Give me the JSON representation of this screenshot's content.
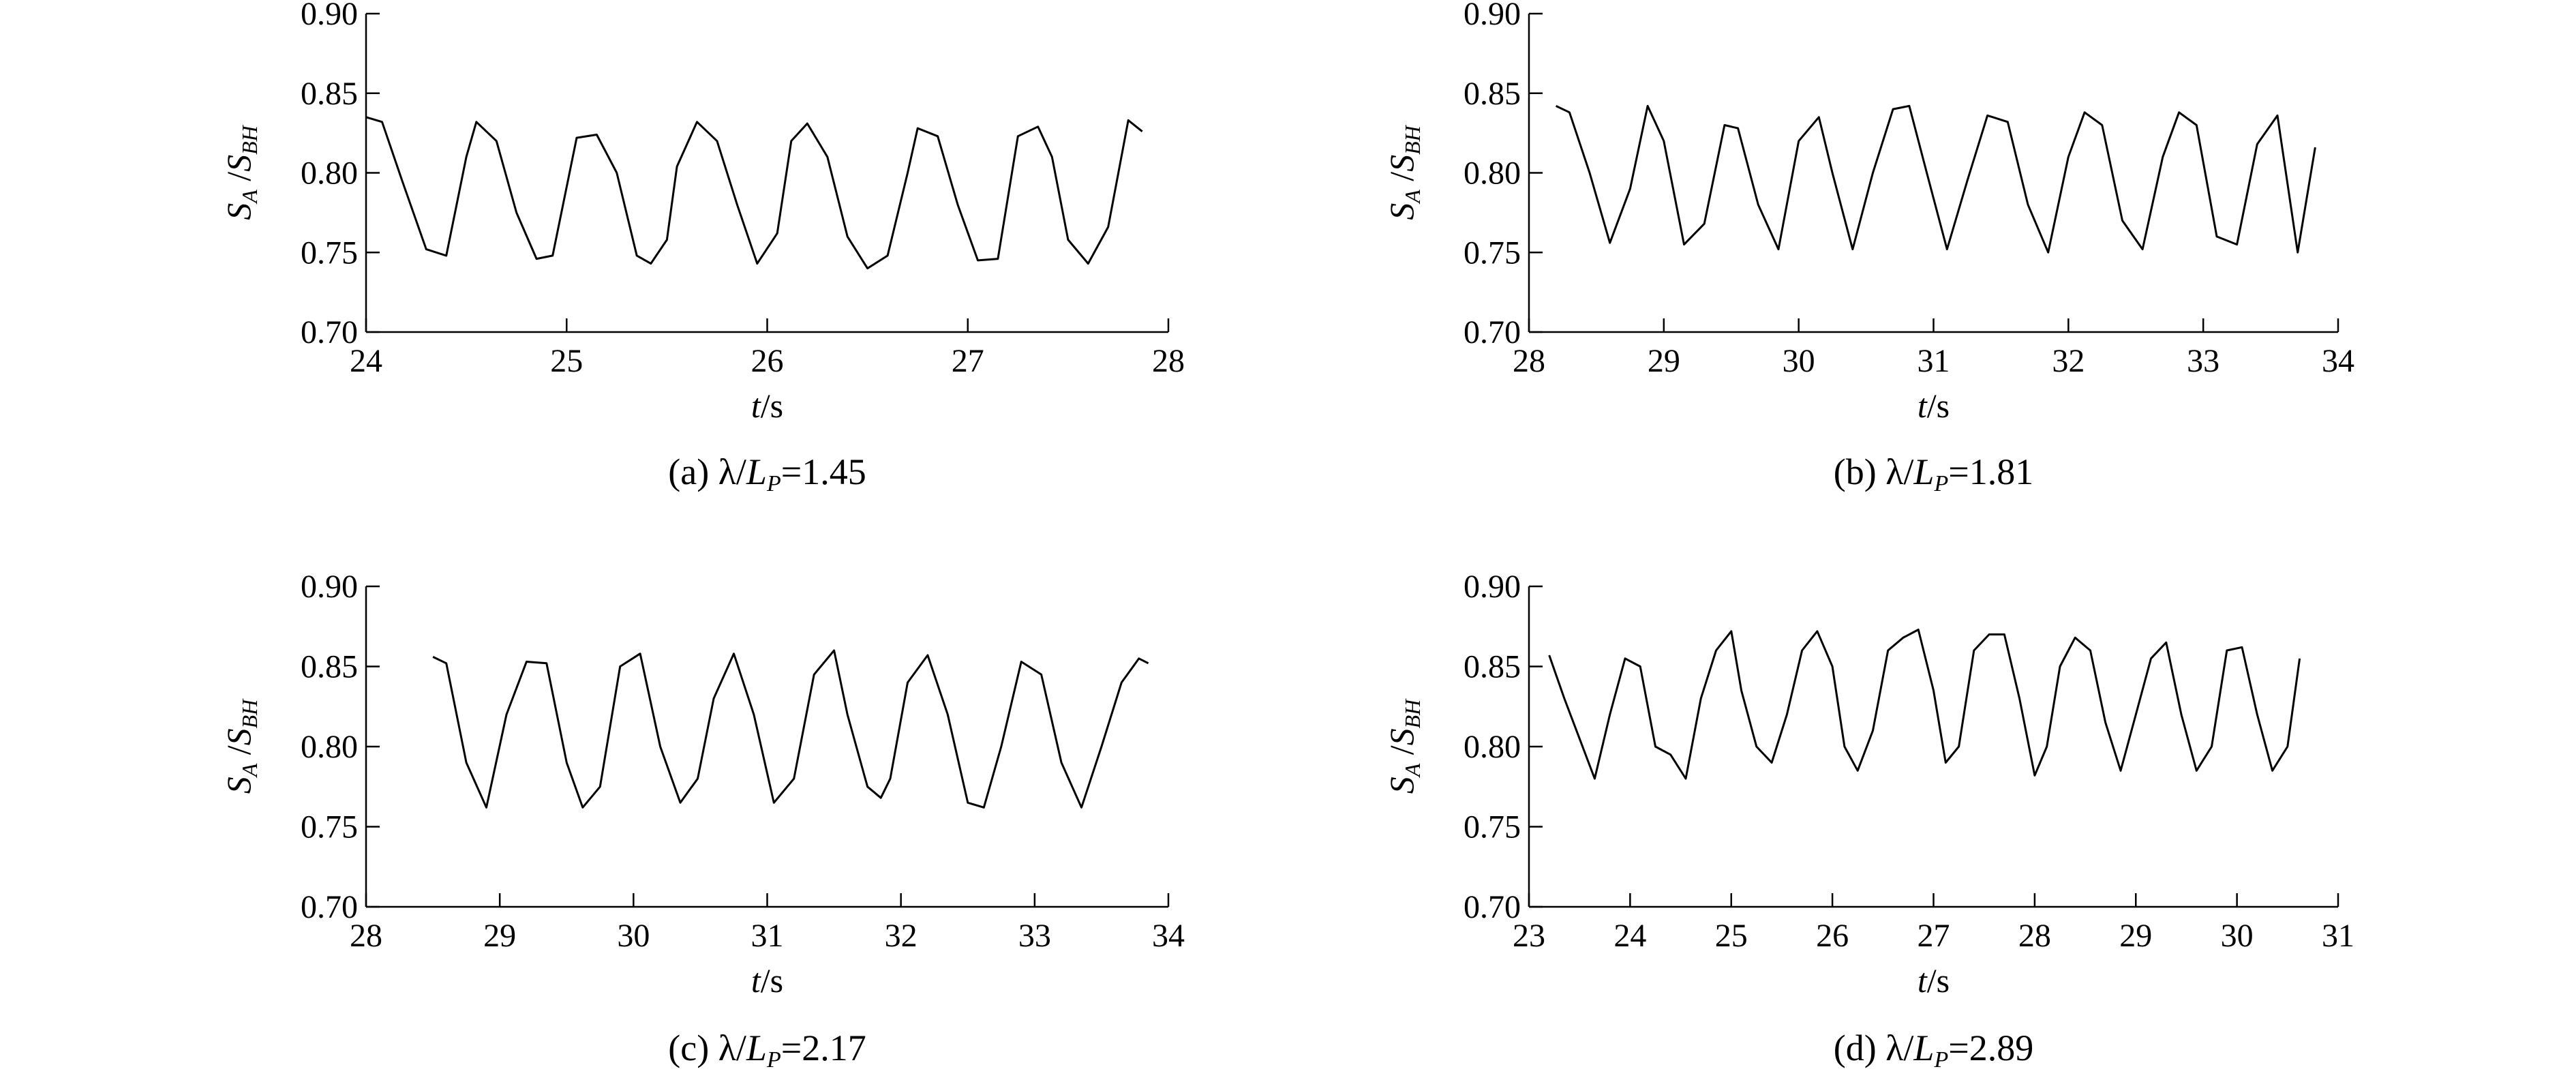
{
  "chart_data": [
    {
      "id": "a",
      "type": "line",
      "caption_prefix": "(a) λ/",
      "caption_var": "L",
      "caption_sub": "P",
      "caption_value": "=1.45",
      "ylabel": {
        "s1": "S",
        "sub1": "A",
        "sep": " /",
        "s2": "S",
        "sub2": "BH"
      },
      "xlabel": {
        "var": "t",
        "unit": "/s"
      },
      "xlim": [
        24,
        28
      ],
      "ylim": [
        0.7,
        0.9
      ],
      "xticks": [
        24,
        25,
        26,
        27,
        28
      ],
      "yticks": [
        0.7,
        0.75,
        0.8,
        0.85,
        0.9
      ],
      "xtick_labels": [
        "24",
        "25",
        "26",
        "27",
        "28"
      ],
      "ytick_labels": [
        "0.70",
        "0.75",
        "0.80",
        "0.85",
        "0.90"
      ],
      "series": [
        {
          "x": [
            24.0,
            24.08,
            24.18,
            24.3,
            24.4,
            24.5,
            24.55,
            24.65,
            24.75,
            24.85,
            24.93,
            25.05,
            25.15,
            25.25,
            25.35,
            25.42,
            25.5,
            25.55,
            25.65,
            25.75,
            25.85,
            25.95,
            26.05,
            26.12,
            26.2,
            26.3,
            26.4,
            26.5,
            26.6,
            26.7,
            26.75,
            26.85,
            26.95,
            27.05,
            27.15,
            27.25,
            27.35,
            27.42,
            27.5,
            27.6,
            27.7,
            27.8,
            27.87
          ],
          "y": [
            0.835,
            0.832,
            0.795,
            0.752,
            0.748,
            0.81,
            0.832,
            0.82,
            0.775,
            0.746,
            0.748,
            0.822,
            0.824,
            0.8,
            0.748,
            0.743,
            0.758,
            0.804,
            0.832,
            0.82,
            0.78,
            0.743,
            0.762,
            0.82,
            0.831,
            0.81,
            0.76,
            0.74,
            0.748,
            0.8,
            0.828,
            0.823,
            0.78,
            0.745,
            0.746,
            0.823,
            0.829,
            0.81,
            0.758,
            0.743,
            0.766,
            0.833,
            0.826
          ]
        }
      ]
    },
    {
      "id": "b",
      "type": "line",
      "caption_prefix": "(b) λ/",
      "caption_var": "L",
      "caption_sub": "P",
      "caption_value": "=1.81",
      "ylabel": {
        "s1": "S",
        "sub1": "A",
        "sep": " /",
        "s2": "S",
        "sub2": "BH"
      },
      "xlabel": {
        "var": "t",
        "unit": "/s"
      },
      "xlim": [
        28,
        34
      ],
      "ylim": [
        0.7,
        0.9
      ],
      "xticks": [
        28,
        29,
        30,
        31,
        32,
        33,
        34
      ],
      "yticks": [
        0.7,
        0.75,
        0.8,
        0.85,
        0.9
      ],
      "xtick_labels": [
        "28",
        "29",
        "30",
        "31",
        "32",
        "33",
        "34"
      ],
      "ytick_labels": [
        "0.70",
        "0.75",
        "0.80",
        "0.85",
        "0.90"
      ],
      "series": [
        {
          "x": [
            28.2,
            28.3,
            28.45,
            28.6,
            28.75,
            28.88,
            29.0,
            29.15,
            29.3,
            29.45,
            29.55,
            29.7,
            29.85,
            30.0,
            30.15,
            30.25,
            30.4,
            30.55,
            30.7,
            30.82,
            30.95,
            31.1,
            31.25,
            31.4,
            31.55,
            31.7,
            31.85,
            32.0,
            32.12,
            32.25,
            32.4,
            32.55,
            32.7,
            32.82,
            32.95,
            33.1,
            33.25,
            33.4,
            33.55,
            33.7,
            33.83
          ],
          "y": [
            0.842,
            0.838,
            0.8,
            0.756,
            0.79,
            0.842,
            0.82,
            0.755,
            0.768,
            0.83,
            0.828,
            0.78,
            0.752,
            0.82,
            0.835,
            0.8,
            0.752,
            0.8,
            0.84,
            0.842,
            0.8,
            0.752,
            0.795,
            0.836,
            0.832,
            0.78,
            0.75,
            0.81,
            0.838,
            0.83,
            0.77,
            0.752,
            0.81,
            0.838,
            0.83,
            0.76,
            0.755,
            0.818,
            0.836,
            0.75,
            0.816
          ]
        }
      ]
    },
    {
      "id": "c",
      "type": "line",
      "caption_prefix": "(c) λ/",
      "caption_var": "L",
      "caption_sub": "P",
      "caption_value": "=2.17",
      "ylabel": {
        "s1": "S",
        "sub1": "A",
        "sep": " /",
        "s2": "S",
        "sub2": "BH"
      },
      "xlabel": {
        "var": "t",
        "unit": "/s"
      },
      "xlim": [
        28,
        34
      ],
      "ylim": [
        0.7,
        0.9
      ],
      "xticks": [
        28,
        29,
        30,
        31,
        32,
        33,
        34
      ],
      "yticks": [
        0.7,
        0.75,
        0.8,
        0.85,
        0.9
      ],
      "xtick_labels": [
        "28",
        "29",
        "30",
        "31",
        "32",
        "33",
        "34"
      ],
      "ytick_labels": [
        "0.70",
        "0.75",
        "0.80",
        "0.85",
        "0.90"
      ],
      "series": [
        {
          "x": [
            28.5,
            28.6,
            28.75,
            28.9,
            29.05,
            29.2,
            29.35,
            29.5,
            29.62,
            29.75,
            29.9,
            30.05,
            30.2,
            30.35,
            30.48,
            30.6,
            30.75,
            30.9,
            31.05,
            31.2,
            31.35,
            31.5,
            31.6,
            31.75,
            31.85,
            31.92,
            32.05,
            32.2,
            32.35,
            32.5,
            32.62,
            32.75,
            32.9,
            33.05,
            33.2,
            33.35,
            33.5,
            33.65,
            33.78,
            33.85
          ],
          "y": [
            0.856,
            0.852,
            0.79,
            0.762,
            0.82,
            0.853,
            0.852,
            0.79,
            0.762,
            0.775,
            0.85,
            0.858,
            0.8,
            0.765,
            0.78,
            0.83,
            0.858,
            0.82,
            0.765,
            0.78,
            0.845,
            0.86,
            0.82,
            0.775,
            0.768,
            0.78,
            0.84,
            0.857,
            0.82,
            0.765,
            0.762,
            0.8,
            0.853,
            0.845,
            0.79,
            0.762,
            0.8,
            0.84,
            0.855,
            0.852
          ]
        }
      ]
    },
    {
      "id": "d",
      "type": "line",
      "caption_prefix": "(d) λ/",
      "caption_var": "L",
      "caption_sub": "P",
      "caption_value": "=2.89",
      "ylabel": {
        "s1": "S",
        "sub1": "A",
        "sep": " /",
        "s2": "S",
        "sub2": "BH"
      },
      "xlabel": {
        "var": "t",
        "unit": "/s"
      },
      "xlim": [
        23,
        31
      ],
      "ylim": [
        0.7,
        0.9
      ],
      "xticks": [
        23,
        24,
        25,
        26,
        27,
        28,
        29,
        30,
        31
      ],
      "yticks": [
        0.7,
        0.75,
        0.8,
        0.85,
        0.9
      ],
      "xtick_labels": [
        "23",
        "24",
        "25",
        "26",
        "27",
        "28",
        "29",
        "30",
        "31"
      ],
      "ytick_labels": [
        "0.70",
        "0.75",
        "0.80",
        "0.85",
        "0.90"
      ],
      "series": [
        {
          "x": [
            23.2,
            23.35,
            23.5,
            23.65,
            23.8,
            23.95,
            24.1,
            24.25,
            24.4,
            24.55,
            24.7,
            24.85,
            25.0,
            25.1,
            25.25,
            25.4,
            25.55,
            25.7,
            25.85,
            26.0,
            26.12,
            26.25,
            26.4,
            26.55,
            26.7,
            26.85,
            27.0,
            27.12,
            27.25,
            27.4,
            27.55,
            27.7,
            27.85,
            28.0,
            28.12,
            28.25,
            28.4,
            28.55,
            28.7,
            28.85,
            29.0,
            29.15,
            29.3,
            29.45,
            29.6,
            29.75,
            29.9,
            30.05,
            30.2,
            30.35,
            30.5,
            30.62
          ],
          "y": [
            0.857,
            0.83,
            0.805,
            0.78,
            0.82,
            0.855,
            0.85,
            0.8,
            0.795,
            0.78,
            0.83,
            0.86,
            0.872,
            0.835,
            0.8,
            0.79,
            0.82,
            0.86,
            0.872,
            0.85,
            0.8,
            0.785,
            0.81,
            0.86,
            0.868,
            0.873,
            0.835,
            0.79,
            0.8,
            0.86,
            0.87,
            0.87,
            0.83,
            0.782,
            0.8,
            0.85,
            0.868,
            0.86,
            0.815,
            0.785,
            0.82,
            0.855,
            0.865,
            0.82,
            0.785,
            0.8,
            0.86,
            0.862,
            0.82,
            0.785,
            0.8,
            0.855
          ]
        }
      ]
    }
  ]
}
